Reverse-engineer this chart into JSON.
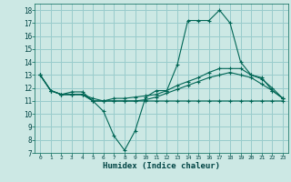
{
  "xlabel": "Humidex (Indice chaleur)",
  "bg_color": "#cce8e4",
  "grid_color": "#99cccc",
  "line_color": "#006655",
  "xlim": [
    -0.5,
    23.5
  ],
  "ylim": [
    7,
    18.5
  ],
  "yticks": [
    7,
    8,
    9,
    10,
    11,
    12,
    13,
    14,
    15,
    16,
    17,
    18
  ],
  "xticks": [
    0,
    1,
    2,
    3,
    4,
    5,
    6,
    7,
    8,
    9,
    10,
    11,
    12,
    13,
    14,
    15,
    16,
    17,
    18,
    19,
    20,
    21,
    22,
    23
  ],
  "series": [
    [
      13.0,
      11.8,
      11.5,
      11.7,
      11.7,
      11.0,
      10.2,
      8.3,
      7.2,
      8.7,
      11.3,
      11.8,
      11.8,
      13.8,
      17.2,
      17.2,
      17.2,
      18.0,
      17.0,
      14.0,
      13.0,
      12.8,
      11.8,
      11.2
    ],
    [
      13.0,
      11.8,
      11.5,
      11.5,
      11.5,
      11.0,
      11.0,
      11.2,
      11.2,
      11.3,
      11.4,
      11.5,
      11.8,
      12.2,
      12.5,
      12.8,
      13.2,
      13.5,
      13.5,
      13.5,
      13.0,
      12.7,
      12.0,
      11.2
    ],
    [
      13.0,
      11.8,
      11.5,
      11.5,
      11.5,
      11.2,
      11.0,
      11.0,
      11.0,
      11.0,
      11.1,
      11.3,
      11.6,
      11.9,
      12.2,
      12.5,
      12.8,
      13.0,
      13.2,
      13.0,
      12.8,
      12.3,
      11.8,
      11.2
    ],
    [
      13.0,
      11.8,
      11.5,
      11.5,
      11.5,
      11.0,
      11.0,
      11.0,
      11.0,
      11.0,
      11.0,
      11.0,
      11.0,
      11.0,
      11.0,
      11.0,
      11.0,
      11.0,
      11.0,
      11.0,
      11.0,
      11.0,
      11.0,
      11.0
    ]
  ]
}
